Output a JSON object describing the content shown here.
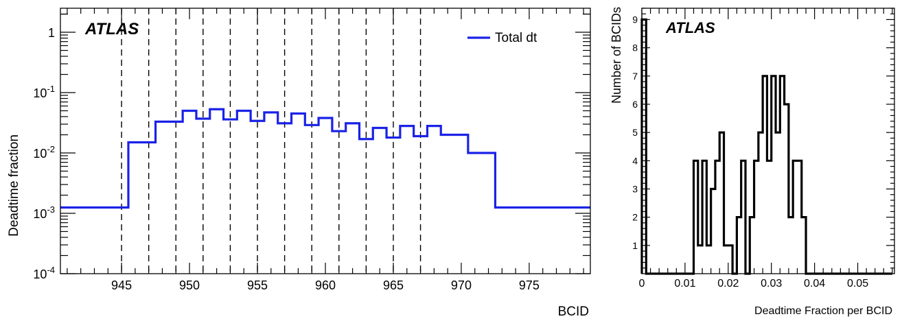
{
  "chart_data": [
    {
      "type": "line",
      "style": "step-histogram",
      "atlas_label": "ATLAS",
      "xlabel": "BCID",
      "ylabel": "Deadtime fraction",
      "yscale": "log",
      "xlim": [
        940.5,
        979.5
      ],
      "ylim": [
        0.0001,
        2.5
      ],
      "x_ticks": [
        945,
        950,
        955,
        960,
        965,
        970,
        975
      ],
      "y_ticks": [
        {
          "value": 1,
          "base": "1",
          "exp": ""
        },
        {
          "value": 0.1,
          "base": "10",
          "exp": "-1"
        },
        {
          "value": 0.01,
          "base": "10",
          "exp": "-2"
        },
        {
          "value": 0.001,
          "base": "10",
          "exp": "-3"
        },
        {
          "value": 0.0001,
          "base": "10",
          "exp": "-4"
        }
      ],
      "dashed_lines_x": [
        945,
        947,
        949,
        951,
        953,
        955,
        957,
        959,
        961,
        963,
        965,
        967
      ],
      "legend_position": "top-right",
      "color": "#1a22e6",
      "series": [
        {
          "name": "Total dt",
          "bin_edges": [
            940.5,
            945.5,
            947.5,
            949.5,
            950.5,
            951.5,
            952.5,
            953.5,
            954.5,
            955.5,
            956.5,
            957.5,
            958.5,
            959.5,
            960.5,
            961.5,
            962.5,
            963.5,
            964.5,
            965.5,
            966.5,
            967.5,
            968.5,
            970.5,
            972.5,
            979.5
          ],
          "values": [
            0.00125,
            0.015,
            0.033,
            0.05,
            0.037,
            0.053,
            0.036,
            0.05,
            0.034,
            0.047,
            0.031,
            0.045,
            0.029,
            0.038,
            0.023,
            0.031,
            0.017,
            0.026,
            0.018,
            0.028,
            0.019,
            0.028,
            0.02,
            0.01,
            0.00125
          ]
        }
      ]
    },
    {
      "type": "bar",
      "style": "step-histogram",
      "atlas_label": "ATLAS",
      "xlabel": "Deadtime Fraction per BCID",
      "ylabel": "Number of BCIDs",
      "xlim": [
        0,
        0.0585
      ],
      "ylim": [
        0,
        9.4
      ],
      "x_ticks": [
        {
          "value": 0,
          "label": "0"
        },
        {
          "value": 0.01,
          "label": "0.01"
        },
        {
          "value": 0.02,
          "label": "0.02"
        },
        {
          "value": 0.03,
          "label": "0.03"
        },
        {
          "value": 0.04,
          "label": "0.04"
        },
        {
          "value": 0.05,
          "label": "0.05"
        }
      ],
      "y_ticks": [
        1,
        2,
        3,
        4,
        5,
        6,
        7,
        8,
        9
      ],
      "color": "#000000",
      "bin_width": 0.001,
      "counts": [
        9,
        0,
        0,
        0,
        0,
        0,
        0,
        0,
        0,
        0,
        0,
        0,
        4,
        1,
        4,
        1,
        3,
        4,
        5,
        1,
        1,
        0,
        2,
        4,
        0,
        2,
        4,
        5,
        7,
        4,
        7,
        5,
        7,
        6,
        2,
        4,
        4,
        2,
        0,
        0,
        0,
        0,
        0,
        0,
        0,
        0,
        0,
        0,
        0,
        0,
        0,
        0,
        0,
        0,
        0,
        0,
        0,
        0
      ]
    }
  ]
}
